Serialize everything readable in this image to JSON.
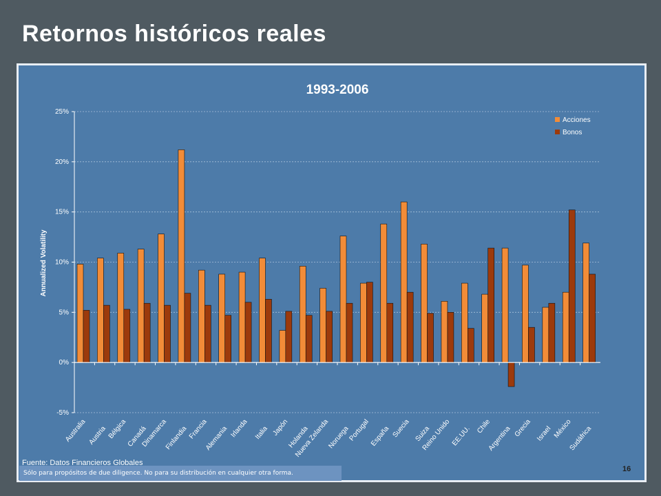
{
  "slide": {
    "title": "Retornos históricos reales",
    "source": "Fuente: Datos Financieros Globales",
    "disclaimer": "Sólo para propósitos de due diligence. No para su distribución en cualquier otra forma.",
    "page_number": "16"
  },
  "colors": {
    "background": "#4f5a61",
    "panel": "#4d7ba9",
    "acciones": "#f28c38",
    "bonos": "#9c3a0c",
    "gridline": "#a9c1dc"
  },
  "chart_data": {
    "type": "bar",
    "title": "1993-2006",
    "ylabel": "Annualized Volatility",
    "xlabel": "",
    "ylim": [
      -5,
      25
    ],
    "yticks": [
      "-5%",
      "0%",
      "5%",
      "10%",
      "15%",
      "20%",
      "25%"
    ],
    "ytick_values": [
      -5,
      0,
      5,
      10,
      15,
      20,
      25
    ],
    "grid": true,
    "legend_position": "top-right",
    "categories": [
      "Australia",
      "Austria",
      "Bélgica",
      "Canadá",
      "Dinamarca",
      "Finlandia",
      "Francia",
      "Alemania",
      "Irlanda",
      "Italia",
      "Japón",
      "Holanda",
      "Nueva Zelanda",
      "Noruega",
      "Portugal",
      "España",
      "Suecia",
      "Suiza",
      "Reino Unido",
      "EE.UU.",
      "Chile",
      "Argentina",
      "Grecia",
      "Israel",
      "México",
      "Sudáfrica"
    ],
    "series": [
      {
        "name": "Acciones",
        "values": [
          9.8,
          10.4,
          10.9,
          11.3,
          12.8,
          21.2,
          9.2,
          8.8,
          9.0,
          10.4,
          3.2,
          9.6,
          7.4,
          12.6,
          7.9,
          13.8,
          16.0,
          11.8,
          6.1,
          7.9,
          6.8,
          11.4,
          9.7,
          5.5,
          7.0,
          11.9
        ]
      },
      {
        "name": "Bonos",
        "values": [
          5.2,
          5.7,
          5.3,
          5.9,
          5.7,
          6.9,
          5.7,
          4.7,
          6.0,
          6.3,
          5.1,
          4.7,
          5.1,
          5.9,
          8.0,
          5.9,
          7.0,
          4.9,
          5.0,
          3.4,
          11.4,
          -2.4,
          3.5,
          5.9,
          15.2,
          8.8
        ]
      }
    ]
  }
}
